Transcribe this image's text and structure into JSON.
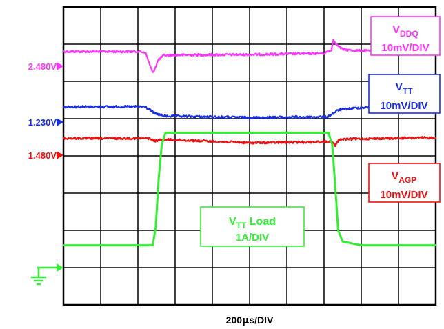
{
  "chart_data": {
    "type": "line",
    "title": "",
    "xlabel_prefix": "200",
    "xlabel_mu": "μ",
    "xlabel_suffix": "s/DIV",
    "grid": true,
    "divisions": {
      "x": 10,
      "y": 8
    },
    "x_unit": "div",
    "y_unit": "div",
    "xlim": [
      0,
      10
    ],
    "ylim": [
      0,
      8
    ],
    "series": [
      {
        "key": "vddq",
        "color": "#ff33ff",
        "level_label": "2.480V",
        "name_main": "V",
        "name_sub": "DDQ",
        "name_suffix": "",
        "scale": "10mV/DIV",
        "x": [
          0,
          2.0,
          2.2,
          2.3,
          2.4,
          2.55,
          2.7,
          3.2,
          5.0,
          7.0,
          7.2,
          7.25,
          7.35,
          7.5,
          7.8,
          8.5,
          10.0
        ],
        "y": [
          6.8,
          6.8,
          6.78,
          6.5,
          6.22,
          6.58,
          6.7,
          6.71,
          6.72,
          6.75,
          6.85,
          7.12,
          6.98,
          6.86,
          6.83,
          6.81,
          6.8
        ]
      },
      {
        "key": "vtt",
        "color": "#1a2ee6",
        "level_label": "1.230V",
        "name_main": "V",
        "name_sub": "TT",
        "name_suffix": "",
        "scale": "10mV/DIV",
        "x": [
          0,
          2.2,
          2.45,
          2.7,
          5.0,
          7.1,
          7.4,
          8.0,
          10.0
        ],
        "y": [
          5.32,
          5.32,
          5.14,
          5.07,
          5.03,
          5.05,
          5.24,
          5.3,
          5.33
        ]
      },
      {
        "key": "vagp",
        "color": "#ee1111",
        "level_label": "1.480V",
        "name_main": "V",
        "name_sub": "AGP",
        "name_suffix": "",
        "scale": "10mV/DIV",
        "x": [
          0,
          2.3,
          2.45,
          2.7,
          5.0,
          7.2,
          7.3,
          7.4,
          8.0,
          10.0
        ],
        "y": [
          4.47,
          4.47,
          4.4,
          4.44,
          4.35,
          4.38,
          4.28,
          4.44,
          4.46,
          4.49
        ]
      },
      {
        "key": "load",
        "color": "#33ee33",
        "level_label": "",
        "name_main": "V",
        "name_sub": "TT",
        "name_suffix": " Load",
        "scale": "1A/DIV",
        "x": [
          0,
          2.4,
          2.48,
          2.56,
          2.64,
          2.74,
          7.12,
          7.22,
          7.3,
          7.38,
          7.5,
          8.0,
          10.0
        ],
        "y": [
          1.6,
          1.6,
          2.1,
          3.4,
          4.3,
          4.62,
          4.62,
          4.3,
          3.2,
          2.0,
          1.7,
          1.6,
          1.6
        ]
      }
    ]
  }
}
